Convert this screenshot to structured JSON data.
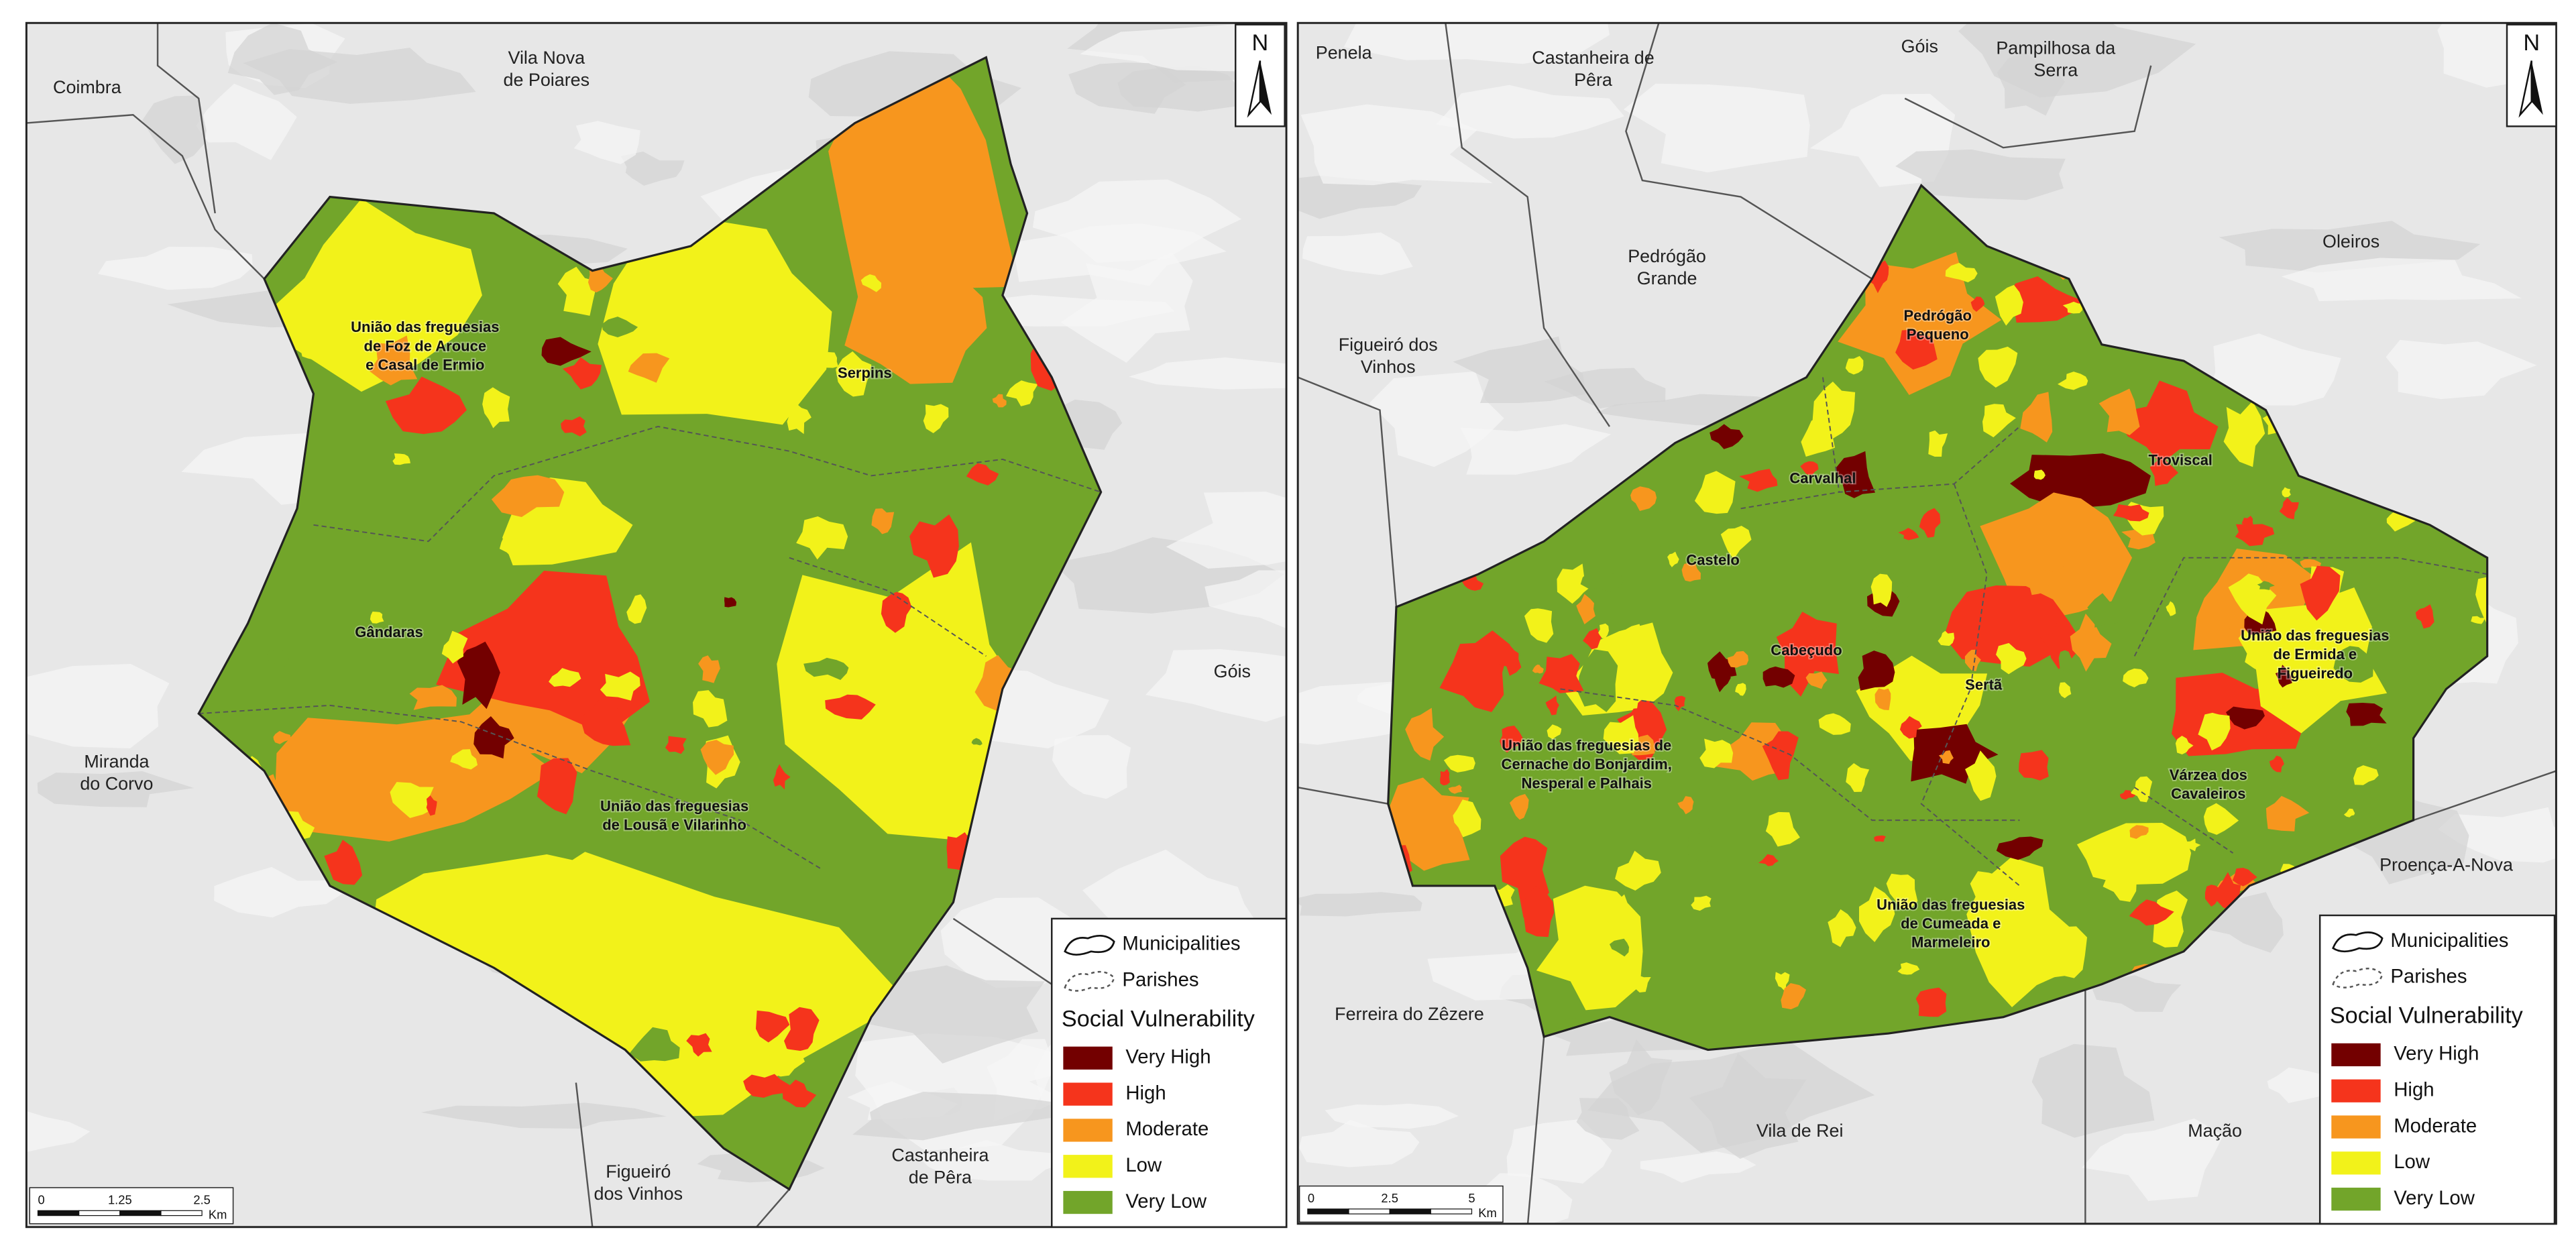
{
  "maps": [
    {
      "places": [
        [
          "Coimbra"
        ],
        [
          "Vila Nova",
          "de Poiares"
        ],
        [
          "Góis"
        ],
        [
          "Miranda",
          "do Corvo"
        ],
        [
          "Figueiró",
          "dos Vinhos"
        ],
        [
          "Castanheira",
          "de Pêra"
        ]
      ],
      "parishes": [
        [
          "União das freguesias",
          "de Foz de Arouce",
          "e Casal de Ermio"
        ],
        [
          "Serpins"
        ],
        [
          "Gândaras"
        ],
        [
          "União das freguesias",
          "de Lousã e Vilarinho"
        ]
      ],
      "north": "N",
      "legend": {
        "boundaries": [
          "Municipalities",
          "Parishes"
        ],
        "title": "Social Vulnerability",
        "classes": [
          {
            "label": "Very High",
            "color": "#730000"
          },
          {
            "label": "High",
            "color": "#f5341c"
          },
          {
            "label": "Moderate",
            "color": "#f7961e"
          },
          {
            "label": "Low",
            "color": "#f2f21a"
          },
          {
            "label": "Very Low",
            "color": "#72a52a"
          }
        ]
      },
      "scale": {
        "ticks": [
          "0",
          "1.25",
          "2.5"
        ],
        "unit": "Km"
      }
    },
    {
      "places": [
        [
          "Penela"
        ],
        [
          "Castanheira de",
          "Pêra"
        ],
        [
          "Góis"
        ],
        [
          "Pampilhosa da",
          "Serra"
        ],
        [
          "Pedrógão",
          "Grande"
        ],
        [
          "Oleiros"
        ],
        [
          "Figueiró dos",
          "Vinhos"
        ],
        [
          "Proença-A-Nova"
        ],
        [
          "Ferreira do Zêzere"
        ],
        [
          "Vila de Rei"
        ],
        [
          "Mação"
        ]
      ],
      "parishes": [
        [
          "Pedrógão",
          "Pequeno"
        ],
        [
          "Troviscal"
        ],
        [
          "Carvalhal"
        ],
        [
          "Castelo"
        ],
        [
          "Cabeçudo"
        ],
        [
          "Sertã"
        ],
        [
          "União das freguesias",
          "de Ermida e",
          "Figueiredo"
        ],
        [
          "União das freguesias de",
          "Cernache do Bonjardim,",
          "Nesperal e Palhais"
        ],
        [
          "Várzea dos",
          "Cavaleiros"
        ],
        [
          "União das freguesias",
          "de Cumeada e",
          "Marmeleiro"
        ]
      ],
      "north": "N",
      "legend": {
        "boundaries": [
          "Municipalities",
          "Parishes"
        ],
        "title": "Social Vulnerability",
        "classes": [
          {
            "label": "Very High",
            "color": "#730000"
          },
          {
            "label": "High",
            "color": "#f5341c"
          },
          {
            "label": "Moderate",
            "color": "#f7961e"
          },
          {
            "label": "Low",
            "color": "#f2f21a"
          },
          {
            "label": "Very Low",
            "color": "#72a52a"
          }
        ]
      },
      "scale": {
        "ticks": [
          "0",
          "2.5",
          "5"
        ],
        "unit": "Km"
      }
    }
  ]
}
